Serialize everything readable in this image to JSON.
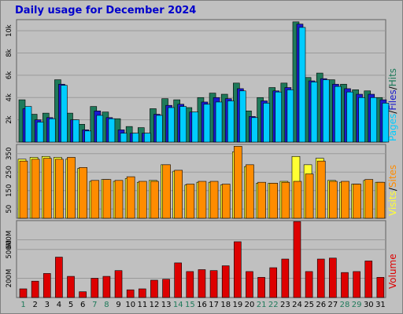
{
  "title": "Daily usage for December 2024",
  "colors": {
    "hits": "#1e7a5a",
    "files": "#1a1acc",
    "pages": "#00ccff",
    "visits": "#ffff33",
    "sites": "#ff8c00",
    "volume": "#dd0000",
    "weekend_label": "#1e7a5a",
    "weekday_label": "#000000",
    "panel_bg": "#c0c0c0"
  },
  "labels": {
    "pages": "Pages",
    "files": "Files",
    "hits": "Hits",
    "visits": "Visits",
    "sites": "Sites",
    "volume": "Volume",
    "sep": "/"
  },
  "chart_data": [
    {
      "type": "bar",
      "panel": "hits-files-pages",
      "categories": [
        "1",
        "2",
        "3",
        "4",
        "5",
        "6",
        "7",
        "8",
        "9",
        "10",
        "11",
        "12",
        "13",
        "14",
        "15",
        "16",
        "17",
        "18",
        "19",
        "20",
        "21",
        "22",
        "23",
        "24",
        "25",
        "26",
        "27",
        "28",
        "29",
        "30",
        "31"
      ],
      "weekend_days": [
        "1",
        "7",
        "8",
        "14",
        "15",
        "21",
        "22",
        "28",
        "29"
      ],
      "ylim": [
        0,
        11000
      ],
      "yticks": [
        {
          "v": 2000,
          "label": "2k"
        },
        {
          "v": 4000,
          "label": "4k"
        },
        {
          "v": 6000,
          "label": "6k"
        },
        {
          "v": 8000,
          "label": "8k"
        },
        {
          "v": 10000,
          "label": "10k"
        }
      ],
      "series": [
        {
          "name": "Hits",
          "values": [
            3800,
            2500,
            2600,
            5600,
            2600,
            1600,
            3200,
            2700,
            2100,
            1400,
            1300,
            3000,
            3900,
            3800,
            3100,
            4000,
            4400,
            4300,
            5300,
            2800,
            4000,
            4900,
            5300,
            10800,
            5800,
            6200,
            5600,
            5200,
            4700,
            4600,
            4000
          ]
        },
        {
          "name": "Files",
          "values": [
            3000,
            2000,
            2200,
            5200,
            2000,
            1100,
            2800,
            2200,
            1100,
            800,
            800,
            2500,
            3300,
            3400,
            2700,
            3600,
            4000,
            3900,
            4800,
            2300,
            3700,
            4600,
            4900,
            10600,
            5500,
            5700,
            5200,
            4800,
            4300,
            4300,
            3800
          ]
        },
        {
          "name": "Pages",
          "values": [
            3200,
            1800,
            2100,
            5100,
            2000,
            1000,
            2400,
            2100,
            800,
            800,
            800,
            2400,
            3100,
            3200,
            2700,
            3400,
            3600,
            3700,
            4600,
            2200,
            3500,
            4500,
            4700,
            10300,
            5400,
            5600,
            5000,
            4500,
            4000,
            4000,
            3500
          ]
        }
      ]
    },
    {
      "type": "bar",
      "panel": "visits-sites",
      "categories": [
        "1",
        "2",
        "3",
        "4",
        "5",
        "6",
        "7",
        "8",
        "9",
        "10",
        "11",
        "12",
        "13",
        "14",
        "15",
        "16",
        "17",
        "18",
        "19",
        "20",
        "21",
        "22",
        "23",
        "24",
        "25",
        "26",
        "27",
        "28",
        "29",
        "30",
        "31"
      ],
      "ylim": [
        0,
        400
      ],
      "yticks": [
        {
          "v": 50,
          "label": "50"
        },
        {
          "v": 150,
          "label": "150"
        },
        {
          "v": 250,
          "label": "250"
        },
        {
          "v": 350,
          "label": "350"
        }
      ],
      "series": [
        {
          "name": "Visits",
          "values": [
            320,
            330,
            335,
            330,
            320,
            270,
            200,
            210,
            200,
            215,
            195,
            205,
            290,
            255,
            180,
            195,
            195,
            180,
            360,
            280,
            190,
            190,
            200,
            335,
            290,
            325,
            205,
            195,
            185,
            205,
            195
          ]
        },
        {
          "name": "Sites",
          "values": [
            310,
            320,
            325,
            320,
            330,
            275,
            205,
            210,
            205,
            225,
            200,
            200,
            290,
            260,
            185,
            200,
            200,
            185,
            390,
            290,
            195,
            190,
            195,
            200,
            240,
            310,
            200,
            200,
            185,
            210,
            195
          ]
        }
      ]
    },
    {
      "type": "bar",
      "panel": "volume",
      "categories": [
        "1",
        "2",
        "3",
        "4",
        "5",
        "6",
        "7",
        "8",
        "9",
        "10",
        "11",
        "12",
        "13",
        "14",
        "15",
        "16",
        "17",
        "18",
        "19",
        "20",
        "21",
        "22",
        "23",
        "24",
        "25",
        "26",
        "27",
        "28",
        "29",
        "30",
        "31"
      ],
      "ylim": [
        0,
        800
      ],
      "yticks": [
        {
          "v": 200,
          "label": "200M"
        },
        {
          "v": 500,
          "label": "500M"
        },
        {
          "v": 600,
          "label": "600M"
        }
      ],
      "series": [
        {
          "name": "Volume",
          "values": [
            90,
            170,
            250,
            420,
            220,
            60,
            200,
            220,
            280,
            80,
            90,
            180,
            190,
            360,
            270,
            290,
            280,
            330,
            580,
            270,
            210,
            310,
            400,
            790,
            270,
            400,
            410,
            260,
            270,
            380,
            210
          ]
        }
      ]
    }
  ]
}
